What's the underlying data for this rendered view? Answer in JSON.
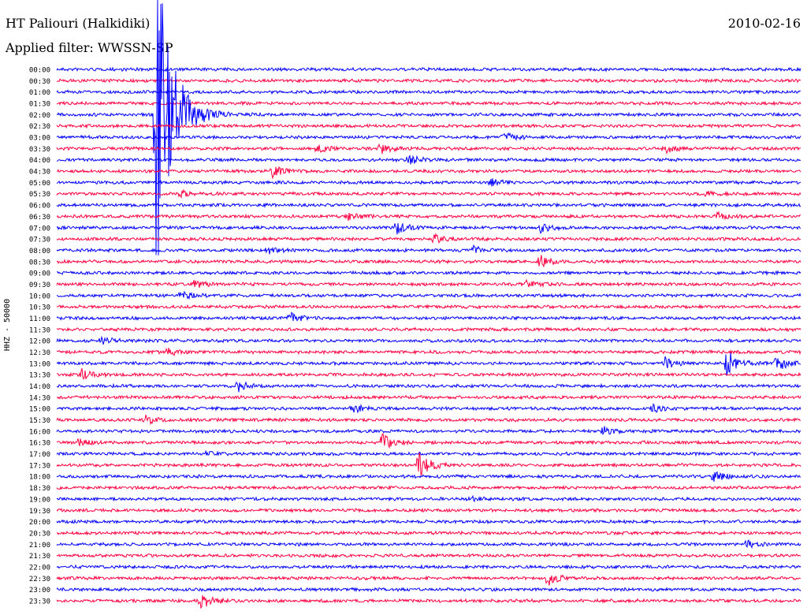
{
  "header": {
    "station": "HT Paliouri (Halkidiki)",
    "date": "2010-02-16",
    "filter": "Applied filter: WWSSN-SP",
    "channel_label": "HHZ - 50000"
  },
  "chart_data": {
    "type": "line",
    "title": "HT Paliouri (Halkidiki)",
    "ylabel": "HHZ - 50000",
    "rows": [
      "00:00",
      "00:30",
      "01:00",
      "01:30",
      "02:00",
      "02:30",
      "03:00",
      "03:30",
      "04:00",
      "04:30",
      "05:00",
      "05:30",
      "06:00",
      "06:30",
      "07:00",
      "07:30",
      "08:00",
      "08:30",
      "09:00",
      "09:30",
      "10:00",
      "10:30",
      "11:00",
      "11:30",
      "12:00",
      "12:30",
      "13:00",
      "13:30",
      "14:00",
      "14:30",
      "15:00",
      "15:30",
      "16:00",
      "16:30",
      "17:00",
      "17:30",
      "18:00",
      "18:30",
      "19:00",
      "19:30",
      "20:00",
      "20:30",
      "21:00",
      "21:30",
      "22:00",
      "22:30",
      "23:00",
      "23:30"
    ],
    "colors": [
      "#0000ff",
      "#ff0040"
    ],
    "events": [
      {
        "row": 4,
        "minute": 4.0,
        "amp": 240
      },
      {
        "row": 6,
        "minute": 18.0,
        "amp": 6
      },
      {
        "row": 7,
        "minute": 10.5,
        "amp": 6
      },
      {
        "row": 7,
        "minute": 13.0,
        "amp": 7
      },
      {
        "row": 7,
        "minute": 24.5,
        "amp": 6
      },
      {
        "row": 8,
        "minute": 14.2,
        "amp": 5
      },
      {
        "row": 9,
        "minute": 8.7,
        "amp": 8
      },
      {
        "row": 10,
        "minute": 17.5,
        "amp": 4
      },
      {
        "row": 11,
        "minute": 5.0,
        "amp": 4
      },
      {
        "row": 11,
        "minute": 26.2,
        "amp": 4
      },
      {
        "row": 13,
        "minute": 11.7,
        "amp": 5
      },
      {
        "row": 13,
        "minute": 26.6,
        "amp": 5
      },
      {
        "row": 14,
        "minute": 13.7,
        "amp": 7
      },
      {
        "row": 14,
        "minute": 19.5,
        "amp": 6
      },
      {
        "row": 15,
        "minute": 15.2,
        "amp": 6
      },
      {
        "row": 16,
        "minute": 8.5,
        "amp": 5
      },
      {
        "row": 16,
        "minute": 16.8,
        "amp": 6
      },
      {
        "row": 17,
        "minute": 19.5,
        "amp": 8
      },
      {
        "row": 19,
        "minute": 5.5,
        "amp": 6
      },
      {
        "row": 19,
        "minute": 18.9,
        "amp": 4
      },
      {
        "row": 20,
        "minute": 5.0,
        "amp": 5
      },
      {
        "row": 22,
        "minute": 9.4,
        "amp": 7
      },
      {
        "row": 24,
        "minute": 1.8,
        "amp": 5
      },
      {
        "row": 25,
        "minute": 4.5,
        "amp": 6
      },
      {
        "row": 26,
        "minute": 27.0,
        "amp": 20
      },
      {
        "row": 26,
        "minute": 29.0,
        "amp": 12
      },
      {
        "row": 26,
        "minute": 24.5,
        "amp": 8
      },
      {
        "row": 27,
        "minute": 1.0,
        "amp": 8
      },
      {
        "row": 28,
        "minute": 7.3,
        "amp": 7
      },
      {
        "row": 30,
        "minute": 11.9,
        "amp": 6
      },
      {
        "row": 30,
        "minute": 24.0,
        "amp": 5
      },
      {
        "row": 31,
        "minute": 3.5,
        "amp": 6
      },
      {
        "row": 32,
        "minute": 22.0,
        "amp": 6
      },
      {
        "row": 33,
        "minute": 0.8,
        "amp": 5
      },
      {
        "row": 33,
        "minute": 13.1,
        "amp": 12
      },
      {
        "row": 34,
        "minute": 6.0,
        "amp": 4
      },
      {
        "row": 35,
        "minute": 14.6,
        "amp": 16
      },
      {
        "row": 36,
        "minute": 26.5,
        "amp": 6
      },
      {
        "row": 38,
        "minute": 16.6,
        "amp": 3
      },
      {
        "row": 42,
        "minute": 27.8,
        "amp": 6
      },
      {
        "row": 45,
        "minute": 19.8,
        "amp": 10
      },
      {
        "row": 47,
        "minute": 5.8,
        "amp": 10
      }
    ]
  }
}
